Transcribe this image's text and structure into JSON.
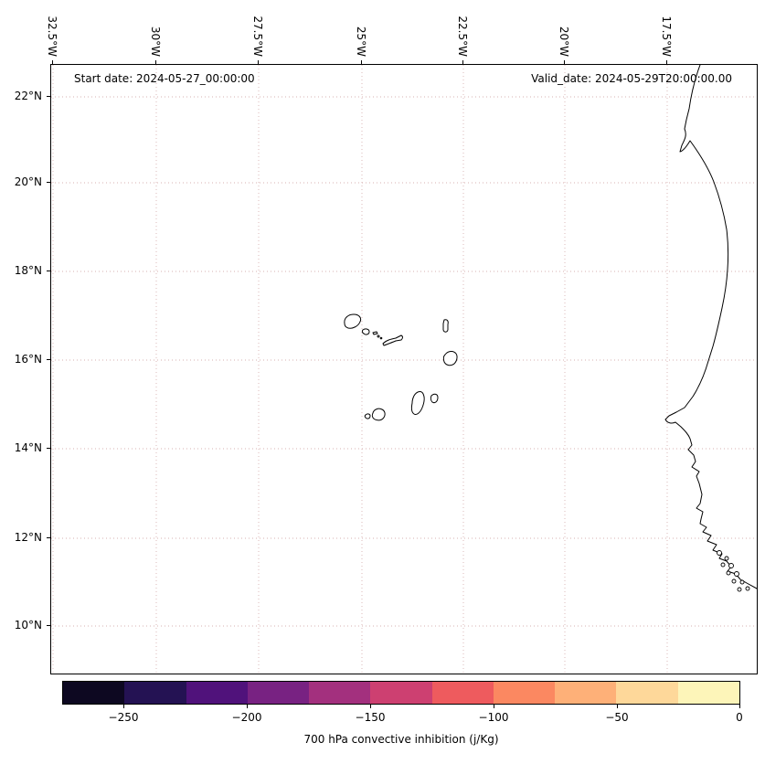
{
  "map": {
    "start_date_label": "Start date: 2024-05-27_00:00:00",
    "valid_date_label": "Valid_date: 2024-05-29T20:00:00.00"
  },
  "axes": {
    "lon_ticks": [
      "32.5°W",
      "30°W",
      "27.5°W",
      "25°W",
      "22.5°W",
      "20°W",
      "17.5°W"
    ],
    "lat_ticks": [
      "22°N",
      "20°N",
      "18°N",
      "16°N",
      "14°N",
      "12°N",
      "10°N"
    ]
  },
  "colorbar": {
    "label": "700 hPa convective inhibition (j/Kg)",
    "ticks": [
      "−250",
      "−200",
      "−150",
      "−100",
      "−50",
      "0"
    ],
    "tick_values": [
      -250,
      -200,
      -150,
      -100,
      -50,
      0
    ],
    "range": [
      -275,
      0
    ],
    "colors": [
      "#0d0821",
      "#241253",
      "#50127b",
      "#782282",
      "#a3307e",
      "#cd4071",
      "#ee5b5e",
      "#fb8861",
      "#feb078",
      "#fed89a",
      "#fdf5b9"
    ]
  },
  "chart_data": {
    "type": "heatmap",
    "title": "",
    "annotations": [
      "Start date: 2024-05-27_00:00:00",
      "Valid_date: 2024-05-29T20:00:00.00"
    ],
    "colorbar_label": "700 hPa convective inhibition (j/Kg)",
    "colorbar_tick_values": [
      -250,
      -200,
      -150,
      -100,
      -50,
      0
    ],
    "colorbar_range_estimate": [
      -275,
      0
    ],
    "lon_ticks_deg_west": [
      32.5,
      30,
      27.5,
      25,
      22.5,
      20,
      17.5
    ],
    "lat_ticks_deg_north": [
      22,
      20,
      18,
      16,
      14,
      12,
      10
    ],
    "map_region": "Eastern tropical Atlantic: Cape Verde islands and West African coast",
    "grid": "dotted graticule at tick positions",
    "filled_field_visible": false
  }
}
